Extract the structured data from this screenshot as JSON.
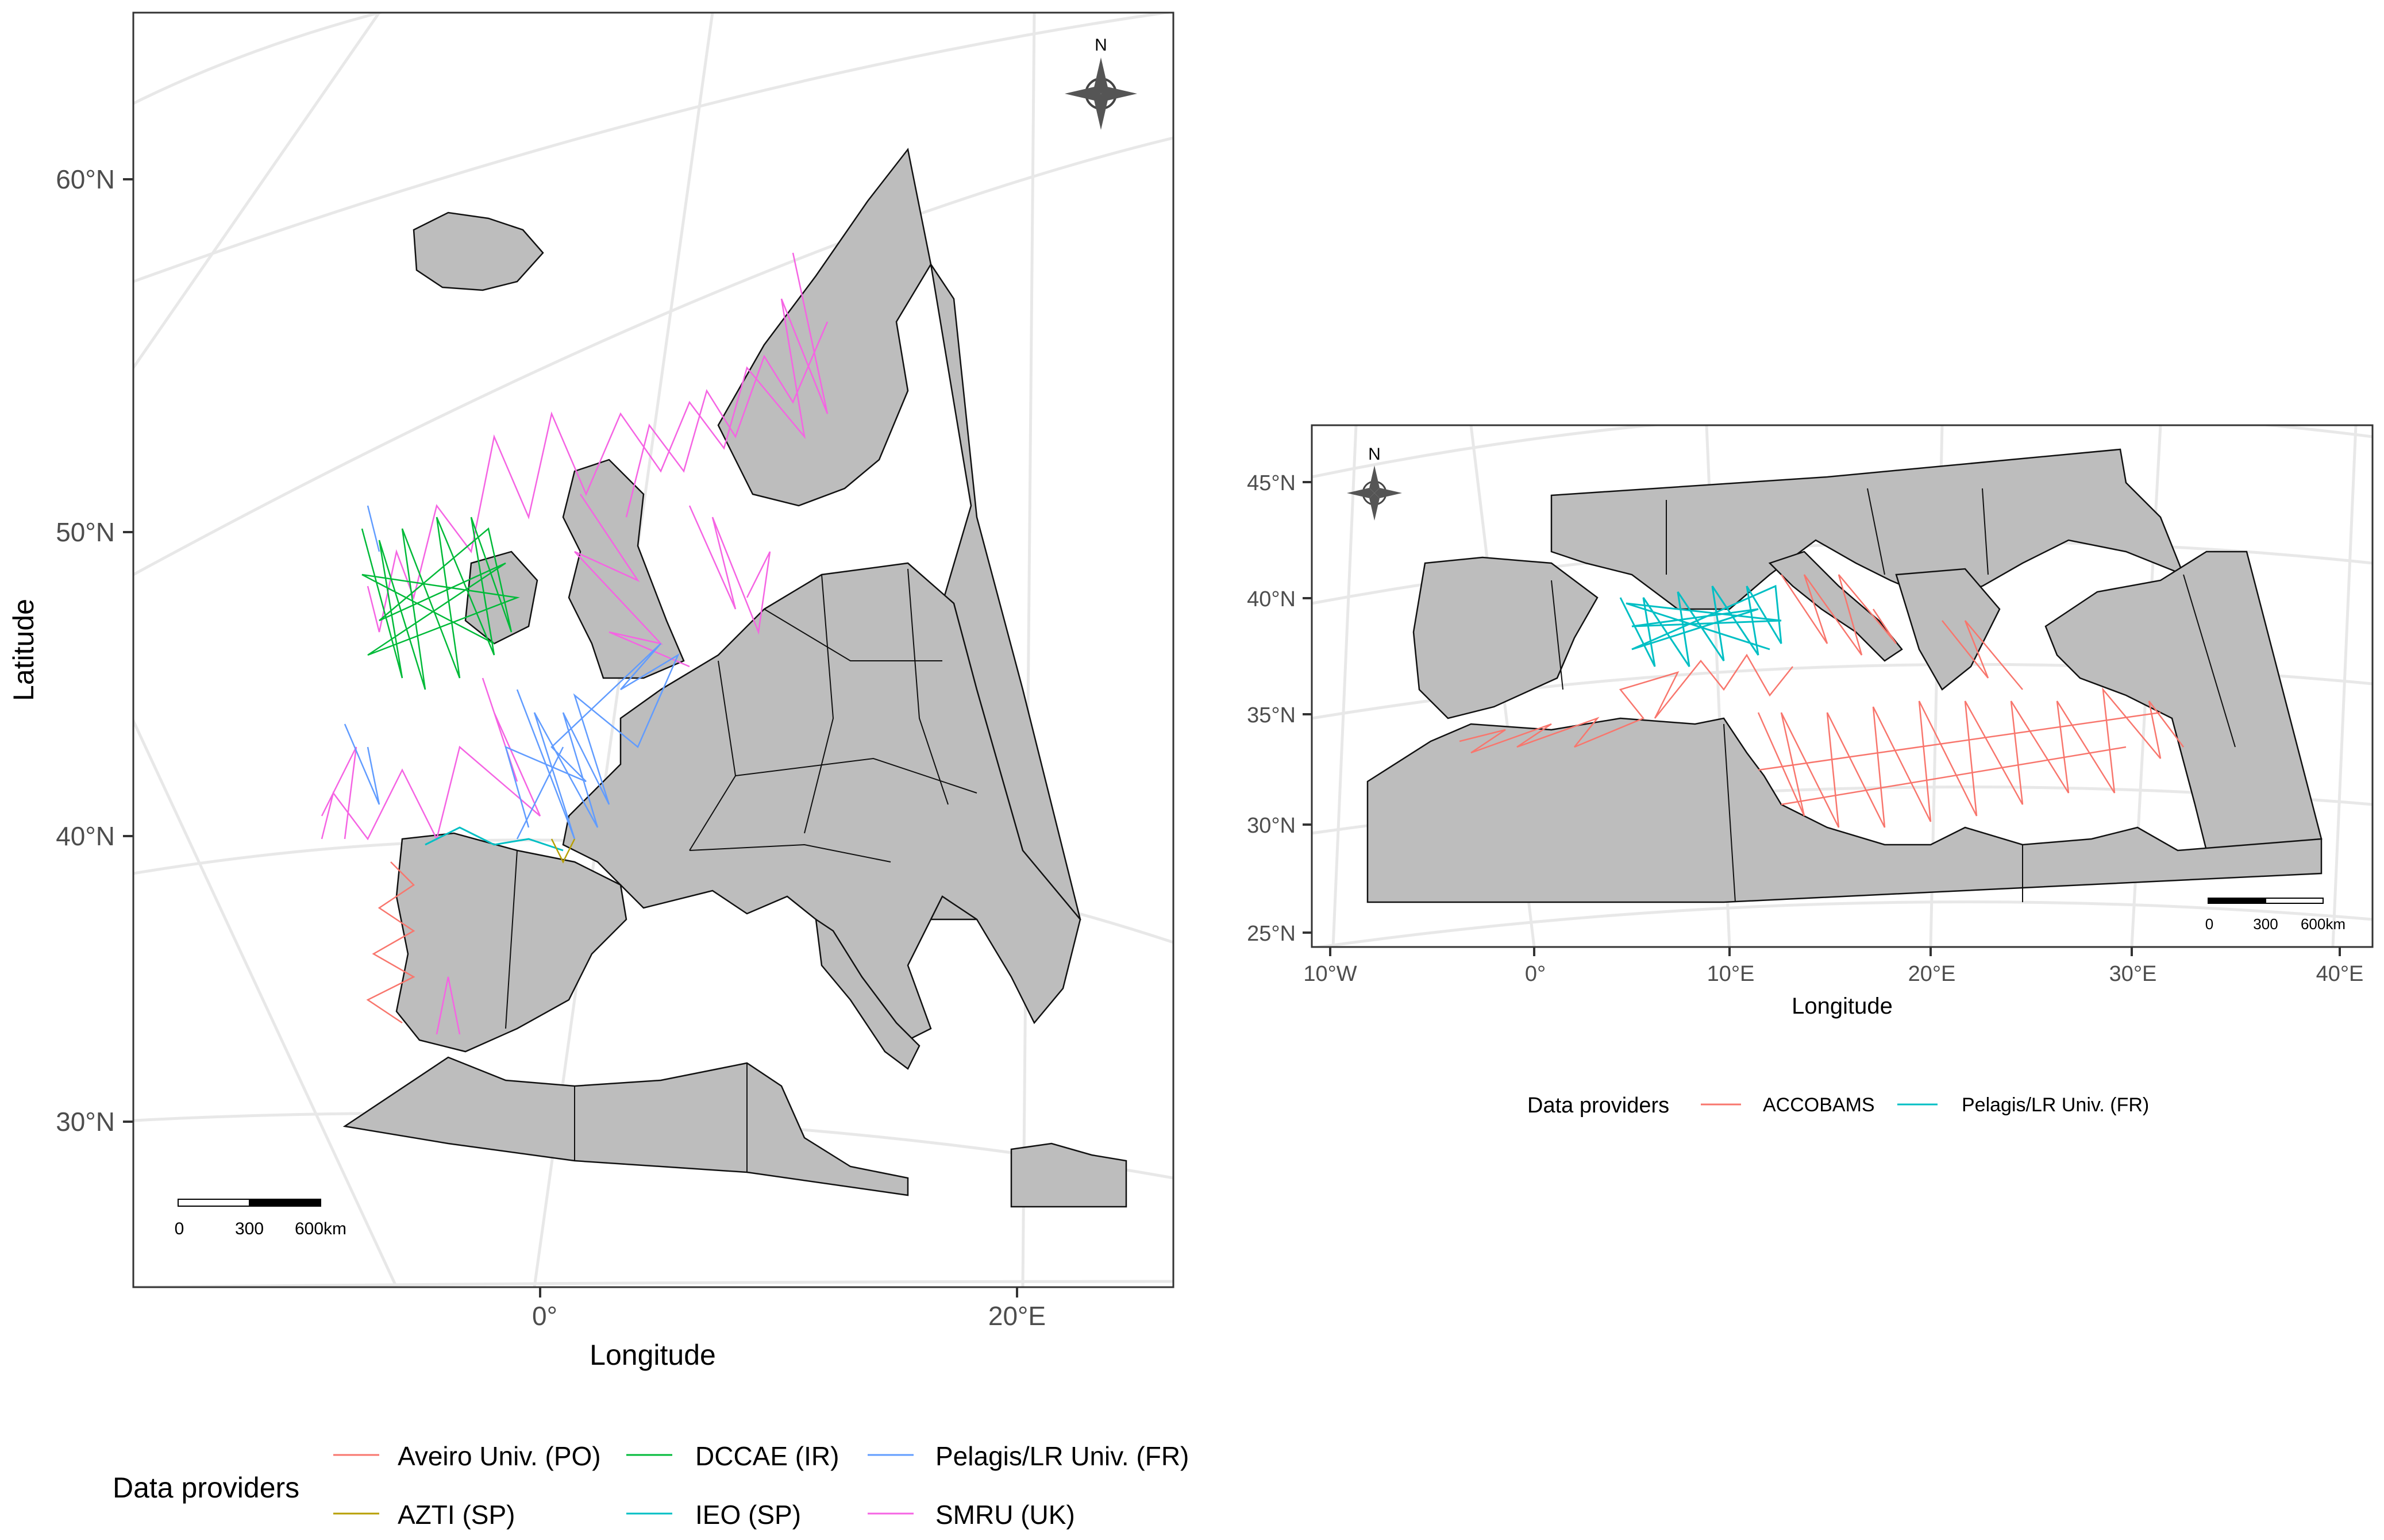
{
  "left_map": {
    "y_ticks": [
      "60°N",
      "50°N",
      "40°N",
      "30°N"
    ],
    "x_ticks": [
      "0°",
      "20°E"
    ],
    "xlabel": "Longitude",
    "ylabel": "Latitude",
    "north_label": "N",
    "scale_bar": [
      "0",
      "300",
      "600km"
    ],
    "legend": {
      "title": "Data providers",
      "items": [
        {
          "label": "Aveiro Univ. (PO)",
          "color": "#F8766D"
        },
        {
          "label": "AZTI (SP)",
          "color": "#B79F00"
        },
        {
          "label": "DCCAE (IR)",
          "color": "#00BA38"
        },
        {
          "label": "IEO (SP)",
          "color": "#00BFC4"
        },
        {
          "label": "Pelagis/LR Univ. (FR)",
          "color": "#619CFF"
        },
        {
          "label": "SMRU (UK)",
          "color": "#F564E3"
        }
      ]
    }
  },
  "right_map": {
    "y_ticks": [
      "45°N",
      "40°N",
      "35°N",
      "30°N",
      "25°N"
    ],
    "x_ticks": [
      "10°W",
      "0°",
      "10°E",
      "20°E",
      "30°E",
      "40°E"
    ],
    "xlabel": "Longitude",
    "north_label": "N",
    "scale_bar": [
      "0",
      "300",
      "600km"
    ],
    "legend": {
      "title": "Data providers",
      "items": [
        {
          "label": "ACCOBAMS",
          "color": "#F8766D"
        },
        {
          "label": "Pelagis/LR Univ. (FR)",
          "color": "#00BFC4"
        }
      ]
    }
  },
  "colors": {
    "land": "#bdbdbd",
    "graticule": "#e8e8e8",
    "frame": "#333333"
  }
}
